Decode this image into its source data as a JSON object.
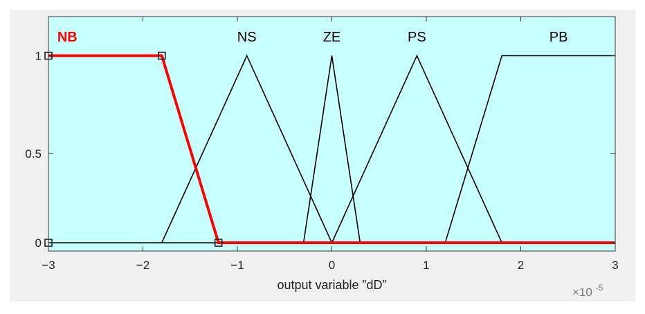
{
  "chart_data": {
    "type": "line",
    "title": "",
    "xlabel": "output variable ”dD”",
    "ylabel": "",
    "x_exponent_label": "×10",
    "x_exponent_power": "-5",
    "xlim": [
      -3,
      3
    ],
    "ylim": [
      0,
      1.2
    ],
    "x_ticks": [
      -3,
      -2,
      -1,
      0,
      1,
      2,
      3
    ],
    "x_tick_labels": [
      "−3",
      "−2",
      "−1",
      "0",
      "1",
      "2",
      "3"
    ],
    "y_ticks": [
      0,
      0.5,
      1
    ],
    "y_tick_labels": [
      "0",
      "0.5",
      "1"
    ],
    "grid": false,
    "legend": "none",
    "selected_series": "NB",
    "series": [
      {
        "name": "NB",
        "shape": "trapezoid",
        "points": [
          [
            -3,
            1
          ],
          [
            -1.8,
            1
          ],
          [
            -1.2,
            0
          ],
          [
            3,
            0
          ]
        ],
        "label_x": -2.8,
        "selected": true
      },
      {
        "name": "NS",
        "shape": "triangle",
        "points": [
          [
            -1.8,
            0
          ],
          [
            -0.9,
            1
          ],
          [
            0,
            0
          ]
        ],
        "label_x": -0.9,
        "selected": false
      },
      {
        "name": "ZE",
        "shape": "triangle",
        "points": [
          [
            -0.3,
            0
          ],
          [
            0,
            1
          ],
          [
            0.3,
            0
          ]
        ],
        "label_x": 0,
        "selected": false
      },
      {
        "name": "PS",
        "shape": "triangle",
        "points": [
          [
            0,
            0
          ],
          [
            0.9,
            1
          ],
          [
            1.8,
            0
          ]
        ],
        "label_x": 0.9,
        "selected": false
      },
      {
        "name": "PB",
        "shape": "trapezoid",
        "points": [
          [
            -3,
            0
          ],
          [
            1.2,
            0
          ],
          [
            1.8,
            1
          ],
          [
            3,
            1
          ]
        ],
        "label_x": 2.4,
        "selected": false
      }
    ],
    "handles": [
      [
        -3,
        1
      ],
      [
        -1.8,
        1
      ],
      [
        -1.2,
        0
      ],
      [
        -3,
        0
      ]
    ]
  },
  "colors": {
    "plot_background": "#c8ffff",
    "outer_background": "#f0f0f0",
    "selected_line": "#ff0000",
    "line": "#000000",
    "axis": "#333333"
  }
}
